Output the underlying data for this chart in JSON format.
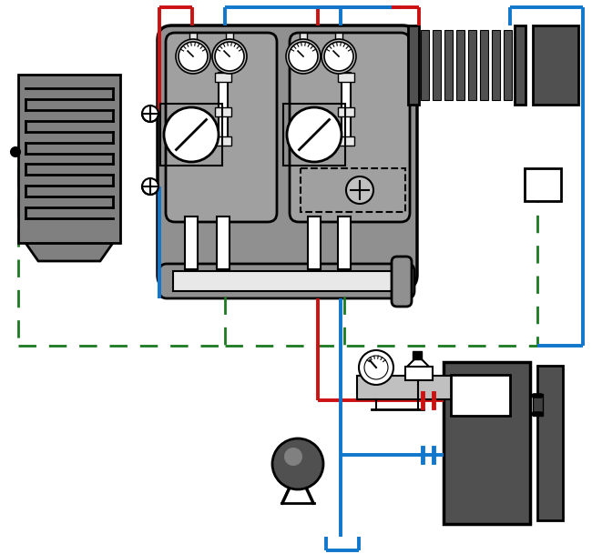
{
  "bg": "#ffffff",
  "red": "#cc1111",
  "blue": "#1177cc",
  "green": "#1a7a20",
  "dark_gray": "#505050",
  "med_gray": "#808080",
  "light_gray": "#c0c0c0",
  "white_gray": "#e8e8e8",
  "black": "#000000",
  "figsize": [
    6.5,
    6.09
  ],
  "dpi": 100,
  "lw_pipe": 2.8,
  "lw_green": 2.0,
  "lw_comp": 1.8
}
